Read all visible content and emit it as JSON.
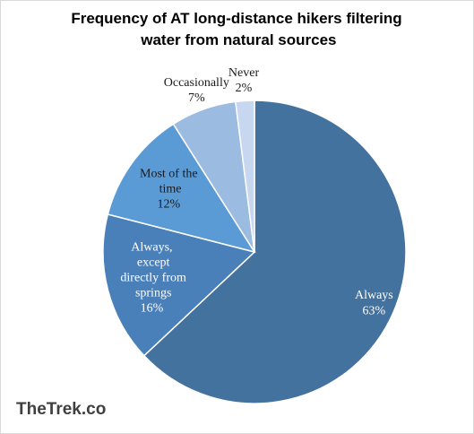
{
  "chart_data": {
    "type": "pie",
    "title": "Frequency of AT long-distance hikers filtering water from natural sources",
    "categories": [
      "Always",
      "Always, except directly from springs",
      "Most of the time",
      "Occasionally",
      "Never"
    ],
    "values": [
      63,
      16,
      12,
      7,
      2
    ],
    "value_labels": [
      "63%",
      "16%",
      "12%",
      "7%",
      "2%"
    ],
    "colors": [
      "#44729e",
      "#4a80ba",
      "#5b9bd5",
      "#9bbbe0",
      "#c6d7ef"
    ],
    "source": "TheTrek.co"
  }
}
